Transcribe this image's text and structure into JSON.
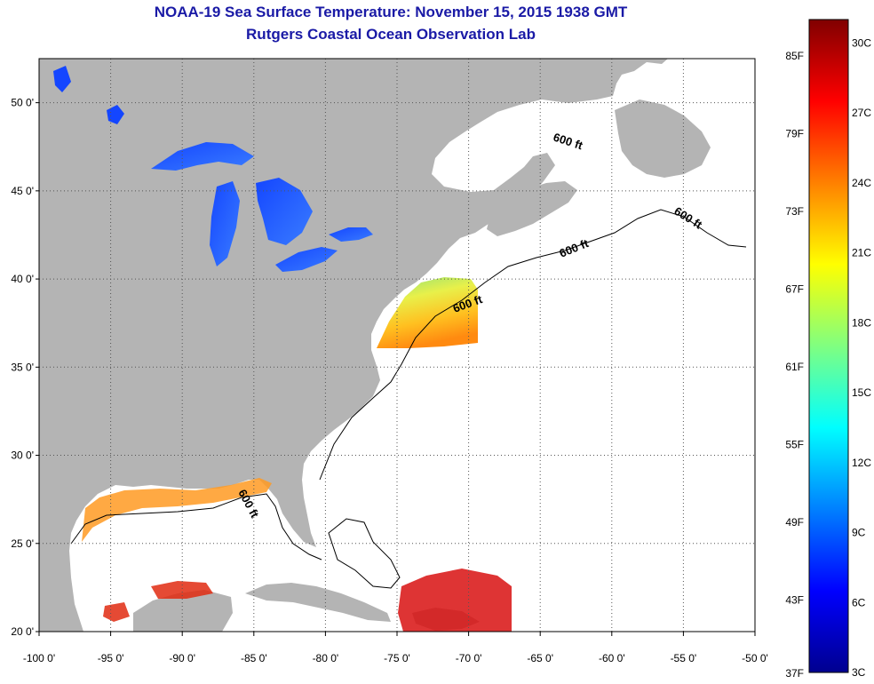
{
  "header": {
    "title": "NOAA-19 Sea Surface Temperature:  November 15, 2015 1938 GMT",
    "subtitle": "Rutgers Coastal Ocean Observation Lab"
  },
  "map": {
    "lon_range": [
      -100,
      -50
    ],
    "lat_range": [
      20,
      52.5
    ],
    "lon_ticks": [
      "-100 0'",
      "-95 0'",
      "-90 0'",
      "-85 0'",
      "-80 0'",
      "-75 0'",
      "-70 0'",
      "-65 0'",
      "-60 0'",
      "-55 0'",
      "-50 0'"
    ],
    "lat_ticks": [
      "20 0'",
      "25 0'",
      "30 0'",
      "35 0'",
      "40 0'",
      "45 0'",
      "50 0'"
    ],
    "contour_label": "600 ft",
    "colors": {
      "land": "#b4b4b4",
      "ocean": "#ffffff",
      "grid": "#555555"
    }
  },
  "colorbar": {
    "fahrenheit": [
      "85F",
      "79F",
      "73F",
      "67F",
      "61F",
      "55F",
      "49F",
      "43F",
      "37F"
    ],
    "celsius": [
      "30C",
      "27C",
      "24C",
      "21C",
      "18C",
      "15C",
      "12C",
      "9C",
      "6C",
      "3C"
    ],
    "range_c": [
      3,
      31
    ],
    "colors": [
      "#00008f",
      "#0000ff",
      "#0080ff",
      "#00ffff",
      "#80ff80",
      "#ffff00",
      "#ff8000",
      "#ff0000",
      "#800000"
    ]
  }
}
